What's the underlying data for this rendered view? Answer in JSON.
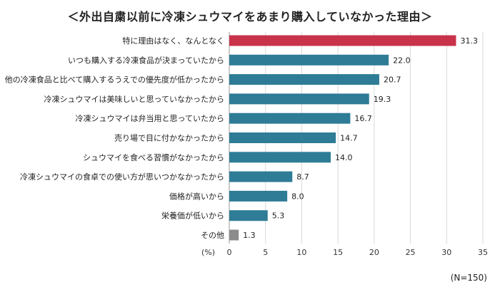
{
  "chart_data": {
    "type": "bar",
    "orientation": "horizontal",
    "title": "＜外出自粛以前に冷凍シュウマイをあまり購入していなかった理由＞",
    "unit_label": "(%)",
    "sample_note": "(N=150)",
    "categories": [
      "特に理由はなく、なんとなく",
      "いつも購入する冷凍食品が決まっていたから",
      "他の冷凍食品と比べて購入するうえでの優先度が低かったから",
      "冷凍シュウマイは美味しいと思っていなかったから",
      "冷凍シュウマイは弁当用と思っていたから",
      "売り場で目に付かなかったから",
      "シュウマイを食べる習慣がなかったから",
      "冷凍シュウマイの食卓での使い方が思いつかなかったから",
      "価格が高いから",
      "栄養価が低いから",
      "その他"
    ],
    "values": [
      31.3,
      22.0,
      20.7,
      19.3,
      16.7,
      14.7,
      14.0,
      8.7,
      8.0,
      5.3,
      1.3
    ],
    "value_labels": [
      "31.3",
      "22.0",
      "20.7",
      "19.3",
      "16.7",
      "14.7",
      "14.0",
      "8.7",
      "8.0",
      "5.3",
      "1.3"
    ],
    "xlim": [
      0,
      35
    ],
    "xticks": [
      0,
      5,
      10,
      15,
      20,
      25,
      30,
      35
    ],
    "grid": true,
    "colors": {
      "highlight": "#c8324a",
      "default": "#2e7c96",
      "other": "#8c8c8c",
      "grid": "#d9d9d9"
    }
  }
}
